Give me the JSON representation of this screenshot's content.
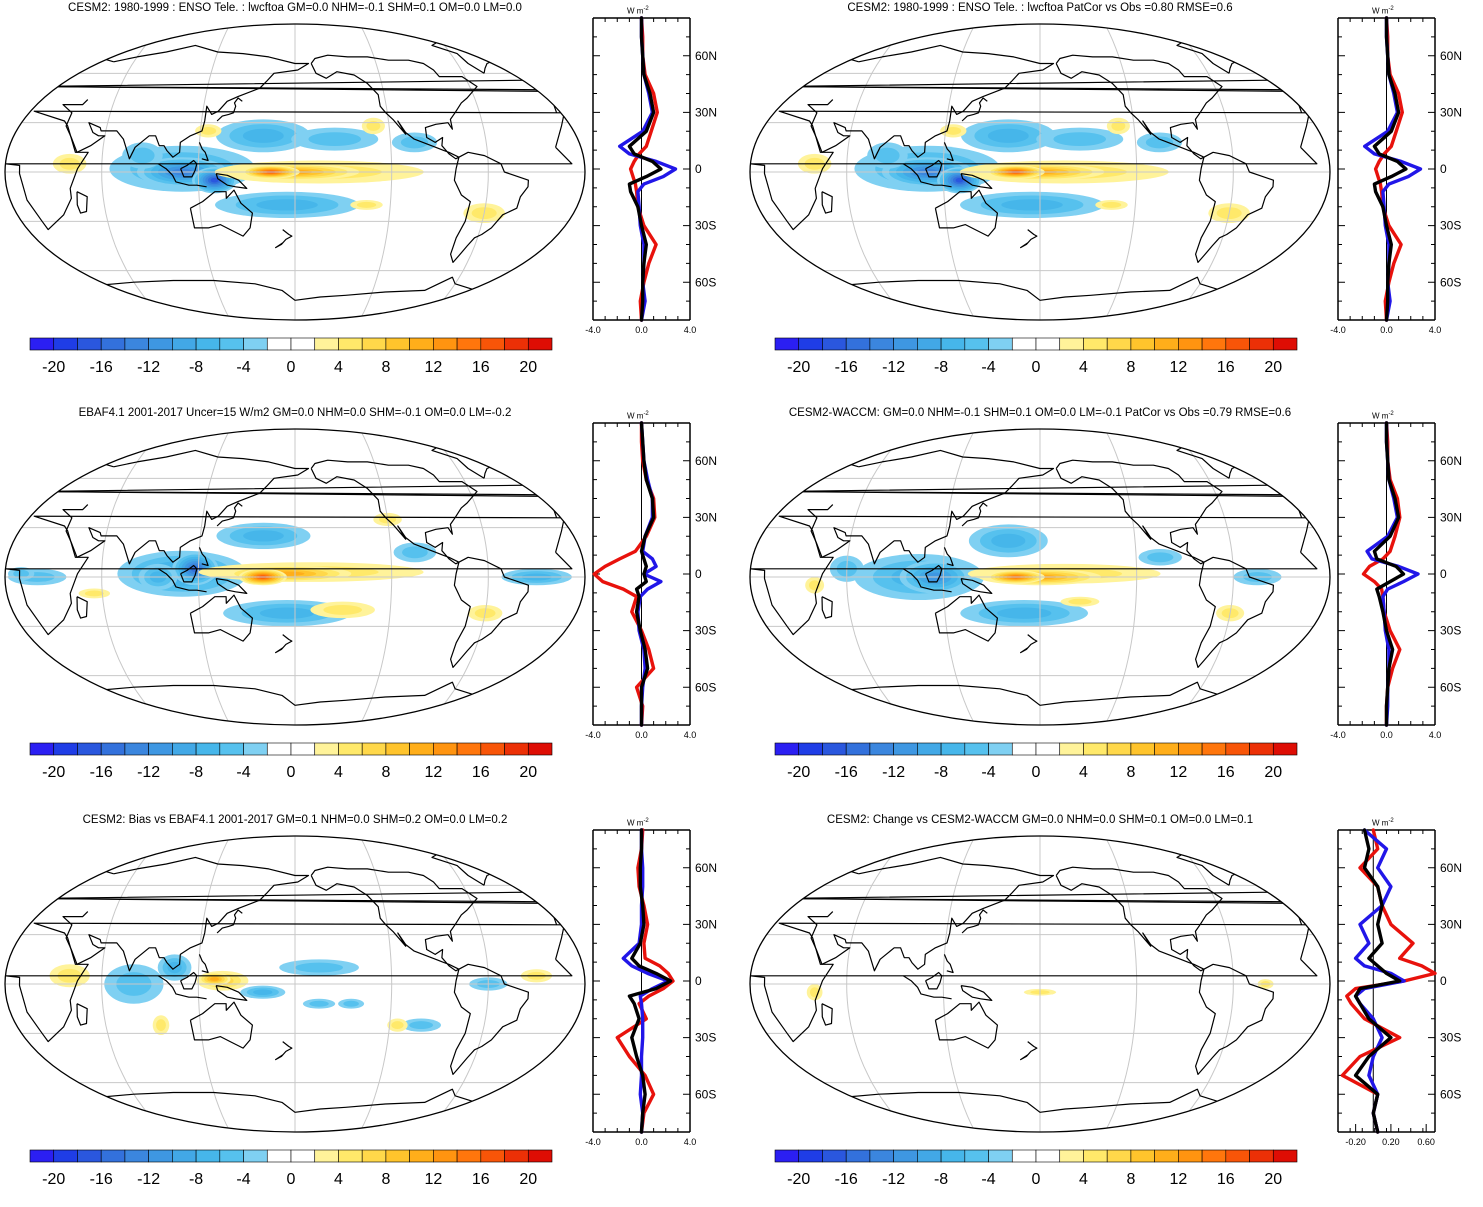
{
  "figure": {
    "units_label": "W m",
    "units_exp": "-2",
    "colorbar": {
      "tick_labels": [
        "-20",
        "-16",
        "-12",
        "-8",
        "-4",
        "0",
        "4",
        "8",
        "12",
        "16",
        "20"
      ],
      "levels": [
        -22,
        -20,
        -18,
        -16,
        -14,
        -12,
        -10,
        -8,
        -6,
        -4,
        -2,
        0,
        2,
        4,
        6,
        8,
        10,
        12,
        14,
        16,
        18,
        20,
        22
      ],
      "colors": [
        "#2b1ff2",
        "#1f3de6",
        "#2a57de",
        "#3371dc",
        "#3b86de",
        "#3e97e2",
        "#42a8e6",
        "#46b6ea",
        "#56c1ee",
        "#7fd0f2",
        "#ffffff",
        "#ffffff",
        "#fff39a",
        "#ffe96a",
        "#ffd84a",
        "#ffc42c",
        "#ffae1a",
        "#ff9410",
        "#ff760c",
        "#f85508",
        "#ec3006",
        "#de0d04"
      ]
    },
    "zonal_axis": {
      "lat_ticks": [
        "60N",
        "30N",
        "0",
        "30S",
        "60S"
      ]
    }
  },
  "chart_data": [
    {
      "type": "map+line",
      "title": "CESM2: 1980-1999 : ENSO Tele. : lwcftoa GM=0.0 NHM=-0.1 SHM=0.1 OM=0.0 LM=0.0",
      "field_pattern": "model",
      "xlim": [
        -4.0,
        4.0
      ],
      "x_tick_labels": [
        "-4.0",
        "0.0",
        "4.0"
      ],
      "zonal_lat": [
        80,
        70,
        60,
        50,
        40,
        30,
        20,
        12,
        8,
        4,
        0,
        -4,
        -8,
        -12,
        -20,
        -30,
        -40,
        -50,
        -60,
        -70,
        -80
      ],
      "series": [
        {
          "name": "model",
          "color": "#e8120c",
          "values": [
            0.0,
            0.1,
            0.1,
            0.3,
            1.0,
            1.3,
            0.8,
            0.4,
            -0.2,
            -0.6,
            -0.9,
            -0.7,
            -0.5,
            -0.4,
            -0.3,
            0.2,
            1.2,
            0.6,
            0.2,
            -0.1,
            0.0
          ]
        },
        {
          "name": "obs",
          "color": "#2116e8",
          "values": [
            0.0,
            0.0,
            0.1,
            0.2,
            0.6,
            0.9,
            0.1,
            -1.8,
            -1.0,
            1.2,
            2.8,
            1.8,
            0.2,
            -0.3,
            -0.2,
            -0.1,
            0.2,
            0.2,
            0.1,
            0.3,
            0.0
          ]
        },
        {
          "name": "mean",
          "color": "#000000",
          "values": [
            0.0,
            0.0,
            0.1,
            0.2,
            0.7,
            1.0,
            0.4,
            -1.0,
            -0.6,
            0.9,
            1.6,
            0.4,
            -1.0,
            -0.9,
            -0.3,
            0.0,
            0.4,
            0.2,
            0.1,
            0.1,
            0.0
          ]
        }
      ]
    },
    {
      "type": "map+line",
      "title": "CESM2: 1980-1999 : ENSO Tele. : lwcftoa PatCor vs Obs =0.80 RMSE=0.6",
      "field_pattern": "model",
      "xlim": [
        -4.0,
        4.0
      ],
      "x_tick_labels": [
        "-4.0",
        "0.0",
        "4.0"
      ],
      "zonal_lat": [
        80,
        70,
        60,
        50,
        40,
        30,
        20,
        12,
        8,
        4,
        0,
        -4,
        -8,
        -12,
        -20,
        -30,
        -40,
        -50,
        -60,
        -70,
        -80
      ],
      "series": [
        {
          "name": "model",
          "color": "#e8120c",
          "values": [
            0.0,
            0.1,
            0.1,
            0.3,
            1.0,
            1.3,
            0.8,
            0.4,
            -0.2,
            -0.6,
            -0.9,
            -0.7,
            -0.5,
            -0.4,
            -0.3,
            0.2,
            1.2,
            0.6,
            0.2,
            -0.1,
            0.0
          ]
        },
        {
          "name": "obs",
          "color": "#2116e8",
          "values": [
            0.0,
            0.0,
            0.1,
            0.2,
            0.6,
            0.9,
            0.1,
            -1.8,
            -1.0,
            1.2,
            2.8,
            1.8,
            0.2,
            -0.3,
            -0.2,
            -0.1,
            0.2,
            0.2,
            0.1,
            0.3,
            0.0
          ]
        },
        {
          "name": "mean",
          "color": "#000000",
          "values": [
            0.0,
            0.0,
            0.1,
            0.2,
            0.7,
            1.0,
            0.4,
            -1.0,
            -0.6,
            0.9,
            1.6,
            0.4,
            -1.0,
            -0.9,
            -0.3,
            0.0,
            0.4,
            0.2,
            0.1,
            0.1,
            0.0
          ]
        }
      ]
    },
    {
      "type": "map+line",
      "title": "EBAF4.1 2001-2017 Uncer=15 W/m2 GM=0.0 NHM=0.0 SHM=-0.1 OM=0.0 LM=-0.2",
      "field_pattern": "obs",
      "xlim": [
        -4.0,
        4.0
      ],
      "x_tick_labels": [
        "-4.0",
        "0.0",
        "4.0"
      ],
      "zonal_lat": [
        80,
        70,
        60,
        50,
        40,
        30,
        20,
        12,
        8,
        4,
        0,
        -4,
        -8,
        -12,
        -20,
        -30,
        -40,
        -50,
        -60,
        -70,
        -80
      ],
      "series": [
        {
          "name": "model",
          "color": "#e8120c",
          "values": [
            0.0,
            0.0,
            0.1,
            0.4,
            1.0,
            1.1,
            0.4,
            -0.5,
            -1.8,
            -3.0,
            -3.9,
            -3.2,
            -1.5,
            -0.4,
            -0.8,
            0.0,
            0.6,
            1.0,
            -0.4,
            0.1,
            0.0
          ]
        },
        {
          "name": "obs",
          "color": "#2116e8",
          "values": [
            0.0,
            0.1,
            0.2,
            0.5,
            0.9,
            0.9,
            0.3,
            0.1,
            0.9,
            1.2,
            0.2,
            1.6,
            0.5,
            -0.1,
            -0.3,
            -0.2,
            0.2,
            0.3,
            0.1,
            0.0,
            0.0
          ]
        },
        {
          "name": "mean",
          "color": "#000000",
          "values": [
            0.0,
            0.1,
            0.2,
            0.4,
            0.9,
            1.0,
            0.3,
            0.0,
            0.2,
            0.4,
            0.2,
            0.4,
            -0.4,
            -0.2,
            -0.4,
            -0.1,
            0.3,
            0.5,
            0.0,
            0.0,
            0.0
          ]
        }
      ]
    },
    {
      "type": "map+line",
      "title": "CESM2-WACCM: GM=0.0 NHM=-0.1 SHM=0.1 OM=0.0 LM=-0.1 PatCor vs Obs =0.79 RMSE=0.6",
      "field_pattern": "waccm",
      "xlim": [
        -4.0,
        4.0
      ],
      "x_tick_labels": [
        "-4.0",
        "0.0",
        "4.0"
      ],
      "zonal_lat": [
        80,
        70,
        60,
        50,
        40,
        30,
        20,
        12,
        8,
        4,
        0,
        -4,
        -8,
        -12,
        -20,
        -30,
        -40,
        -50,
        -60,
        -70,
        -80
      ],
      "series": [
        {
          "name": "model",
          "color": "#e8120c",
          "values": [
            0.0,
            0.1,
            0.1,
            0.3,
            0.9,
            1.1,
            0.7,
            0.3,
            -0.3,
            -1.4,
            -1.9,
            -1.0,
            -0.4,
            -0.3,
            -0.2,
            0.3,
            1.1,
            0.5,
            0.1,
            0.0,
            0.0
          ]
        },
        {
          "name": "obs",
          "color": "#2116e8",
          "values": [
            0.0,
            0.0,
            0.1,
            0.2,
            0.6,
            0.9,
            0.1,
            -1.6,
            -1.2,
            1.0,
            2.6,
            1.4,
            0.1,
            -0.3,
            -0.2,
            -0.1,
            0.2,
            0.2,
            0.1,
            0.1,
            0.0
          ]
        },
        {
          "name": "mean",
          "color": "#000000",
          "values": [
            0.0,
            0.0,
            0.1,
            0.2,
            0.7,
            1.0,
            0.3,
            -1.0,
            -0.8,
            0.8,
            1.4,
            0.3,
            -0.8,
            -0.6,
            -0.3,
            0.0,
            0.5,
            0.2,
            0.1,
            0.0,
            0.0
          ]
        }
      ]
    },
    {
      "type": "map+line",
      "title": "CESM2: Bias vs EBAF4.1 2001-2017 GM=0.1 NHM=0.0 SHM=0.2 OM=0.0 LM=0.2",
      "field_pattern": "bias",
      "xlim": [
        -4.0,
        4.0
      ],
      "x_tick_labels": [
        "-4.0",
        "0.0",
        "4.0"
      ],
      "zonal_lat": [
        80,
        70,
        60,
        50,
        40,
        30,
        20,
        12,
        8,
        4,
        0,
        -4,
        -8,
        -12,
        -20,
        -30,
        -40,
        -50,
        -60,
        -70,
        -80
      ],
      "series": [
        {
          "name": "model",
          "color": "#e8120c",
          "values": [
            0.1,
            0.0,
            -0.3,
            -0.2,
            0.2,
            0.5,
            0.2,
            0.3,
            1.5,
            2.2,
            2.6,
            1.8,
            0.6,
            -0.2,
            0.4,
            -2.0,
            -1.0,
            0.3,
            1.0,
            0.2,
            0.0
          ]
        },
        {
          "name": "obs",
          "color": "#2116e8",
          "values": [
            0.0,
            0.0,
            0.1,
            0.1,
            0.0,
            0.0,
            -0.2,
            -1.5,
            -0.8,
            0.5,
            2.2,
            0.9,
            -0.1,
            0.0,
            0.1,
            0.1,
            0.0,
            0.0,
            -0.1,
            0.1,
            0.0
          ]
        },
        {
          "name": "mean",
          "color": "#000000",
          "values": [
            0.0,
            0.0,
            -0.1,
            -0.1,
            0.1,
            0.2,
            -0.1,
            -0.8,
            -0.2,
            1.2,
            2.4,
            1.2,
            -1.0,
            -0.6,
            -0.2,
            -0.8,
            -0.4,
            0.1,
            0.3,
            0.1,
            0.0
          ]
        }
      ]
    },
    {
      "type": "map+line",
      "title": "CESM2: Change vs CESM2-WACCM GM=0.0 NHM=0.0 SHM=0.1 OM=0.0 LM=0.1",
      "field_pattern": "change",
      "xlim": [
        -0.4,
        0.7
      ],
      "x_tick_labels": [
        "-0.20",
        "0.20",
        "0.60"
      ],
      "x_tick_values": [
        -0.2,
        0.2,
        0.6
      ],
      "zonal_lat": [
        80,
        70,
        60,
        50,
        40,
        30,
        20,
        12,
        8,
        4,
        0,
        -4,
        -8,
        -12,
        -20,
        -30,
        -40,
        -50,
        -60,
        -70,
        -80
      ],
      "series": [
        {
          "name": "model",
          "color": "#e8120c",
          "values": [
            0.0,
            0.05,
            -0.15,
            0.05,
            0.1,
            0.2,
            0.45,
            0.3,
            0.55,
            0.7,
            0.35,
            -0.2,
            -0.3,
            -0.25,
            -0.1,
            0.3,
            -0.15,
            -0.35,
            0.05,
            0.0,
            0.05
          ]
        },
        {
          "name": "obs",
          "color": "#2116e8",
          "values": [
            -0.1,
            0.15,
            0.05,
            0.2,
            0.1,
            -0.15,
            -0.05,
            -0.2,
            -0.1,
            0.2,
            0.35,
            -0.1,
            -0.2,
            -0.15,
            0.0,
            0.1,
            0.0,
            -0.05,
            0.05,
            0.0,
            0.05
          ]
        },
        {
          "name": "mean",
          "color": "#000000",
          "values": [
            -0.1,
            -0.05,
            -0.1,
            0.05,
            0.1,
            0.05,
            0.1,
            -0.05,
            0.05,
            0.15,
            0.3,
            -0.15,
            -0.2,
            -0.15,
            -0.05,
            0.2,
            -0.05,
            -0.2,
            0.05,
            0.0,
            0.05
          ]
        }
      ]
    }
  ]
}
